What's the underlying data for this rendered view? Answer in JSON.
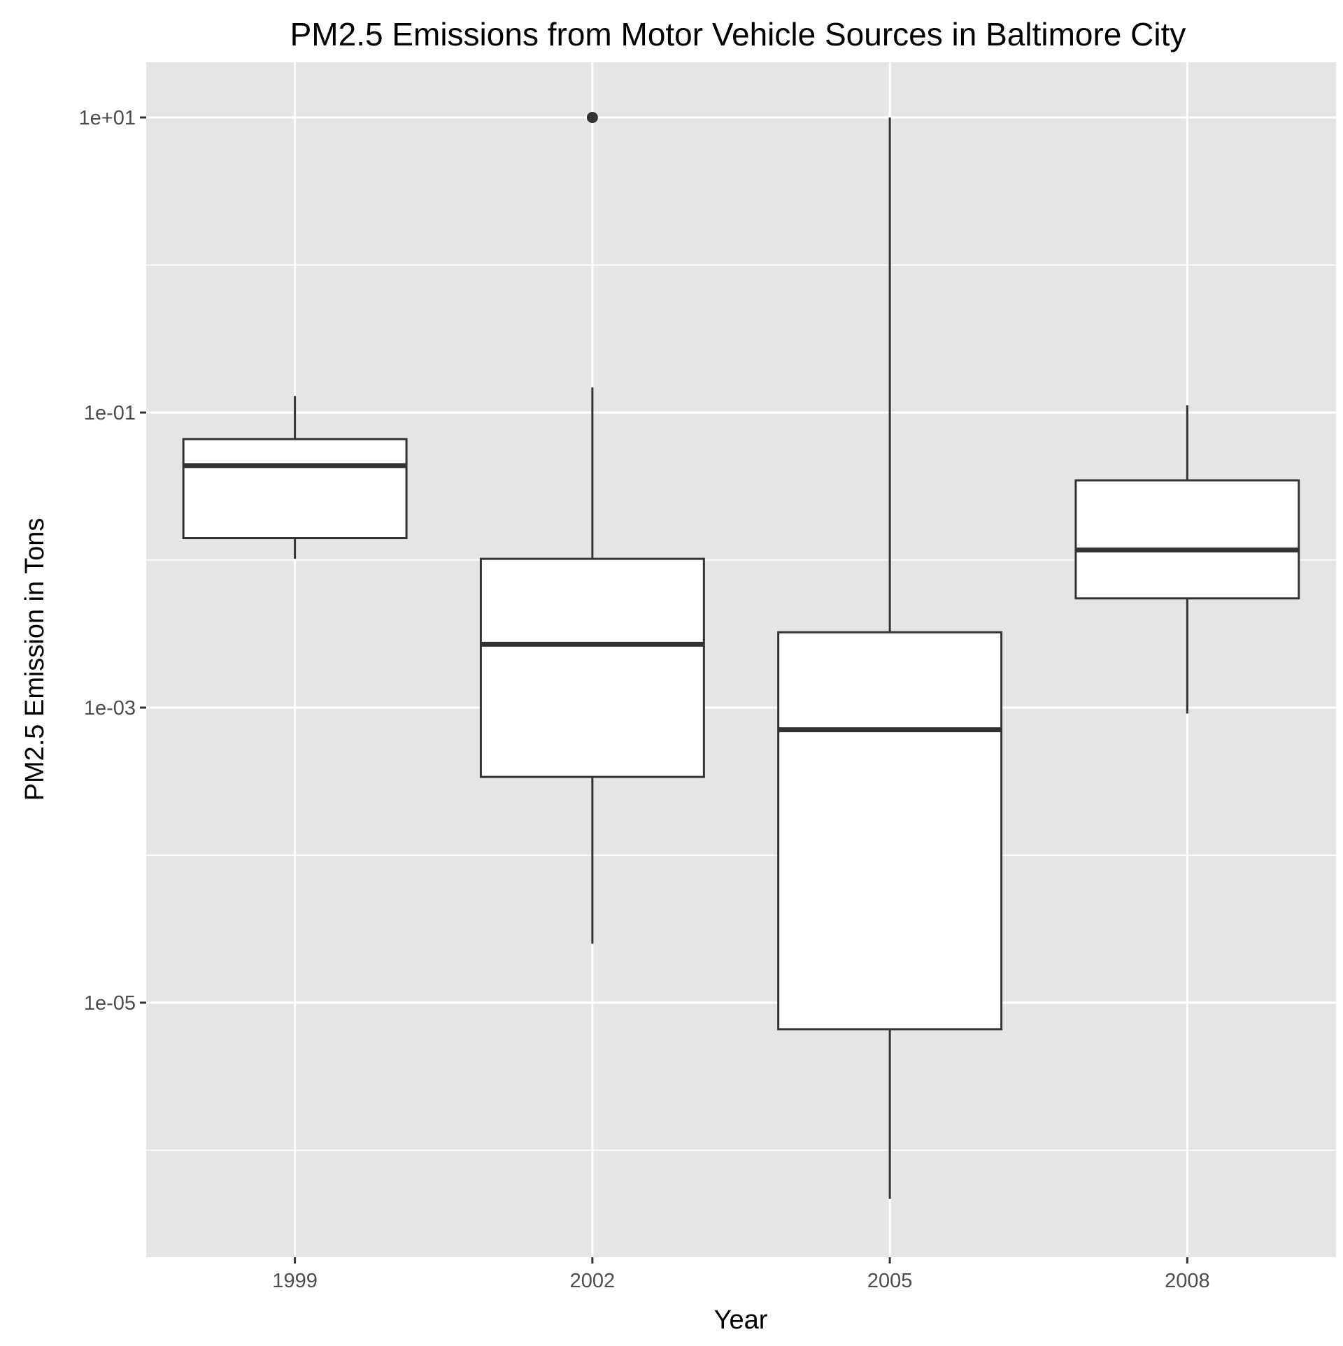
{
  "chart_data": {
    "type": "boxplot",
    "title": "PM2.5 Emissions from Motor Vehicle Sources in Baltimore City",
    "xlabel": "Year",
    "ylabel": "PM2.5 Emission in Tons",
    "y_scale": "log10",
    "ylim": [
      3.5e-08,
      50
    ],
    "grid": true,
    "categories": [
      "1999",
      "2002",
      "2005",
      "2008"
    ],
    "y_ticks": [
      {
        "value": 10,
        "label": "1e+01"
      },
      {
        "value": 0.1,
        "label": "1e-01"
      },
      {
        "value": 0.001,
        "label": "1e-03"
      },
      {
        "value": 1e-05,
        "label": "1e-05"
      }
    ],
    "y_minor_gridlines": [
      1,
      0.01,
      0.0001,
      1e-06
    ],
    "boxes": [
      {
        "category": "1999",
        "whisker_low": 0.0102,
        "q1": 0.0141,
        "median": 0.0437,
        "q3": 0.0661,
        "whisker_high": 0.1295,
        "outliers": []
      },
      {
        "category": "2002",
        "whisker_low": 2.51e-05,
        "q1": 0.000339,
        "median": 0.00269,
        "q3": 0.0102,
        "whisker_high": 0.148,
        "outliers": [
          10.0
        ]
      },
      {
        "category": "2005",
        "whisker_low": 4.68e-07,
        "q1": 6.61e-06,
        "median": 0.000708,
        "q3": 0.00324,
        "whisker_high": 10.0,
        "outliers": []
      },
      {
        "category": "2008",
        "whisker_low": 0.000912,
        "q1": 0.0055,
        "median": 0.0117,
        "q3": 0.0347,
        "whisker_high": 0.1122,
        "outliers": []
      }
    ],
    "colors": {
      "panel_background": "#e5e5e5",
      "gridline": "#ffffff",
      "box_fill": "#ffffff",
      "box_stroke": "#333333",
      "tick_mark": "#333333",
      "tick_label": "#4d4d4d"
    }
  }
}
